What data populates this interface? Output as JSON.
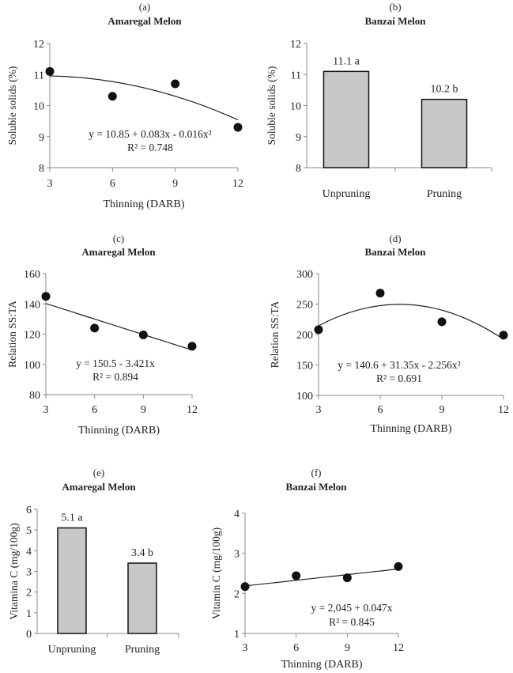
{
  "chart_data": [
    {
      "panel": "(a)",
      "title": "Amaregal Melon",
      "type": "scatter",
      "x": [
        3,
        6,
        9,
        12
      ],
      "y": [
        11.1,
        10.3,
        10.7,
        9.3
      ],
      "xticks": [
        "3",
        "6",
        "9",
        "12"
      ],
      "xlim": [
        3,
        12
      ],
      "ylim": [
        8,
        12
      ],
      "yticks": [
        "8",
        "9",
        "10",
        "11",
        "12"
      ],
      "xlabel": "Thinning  (DARB)",
      "ylabel": "Soluble solids (%)",
      "fit": {
        "kind": "quadratic",
        "coef": [
          10.85,
          0.083,
          -0.016
        ]
      },
      "equation": "y = 10.85 + 0.083x - 0.016x²",
      "r2": "R² = 0.748"
    },
    {
      "panel": "(b)",
      "title": "Banzai Melon",
      "type": "bar",
      "categories": [
        "Unpruning",
        "Pruning"
      ],
      "values": [
        11.1,
        10.2
      ],
      "data_labels": [
        "11.1 a",
        "10.2 b"
      ],
      "ylim": [
        8,
        12
      ],
      "yticks": [
        "8",
        "9",
        "10",
        "11",
        "12"
      ],
      "xlabel": "",
      "ylabel": "Soluble solids (%)",
      "bar_color": "#c8c8c8"
    },
    {
      "panel": "(c)",
      "title": "Amaregal Melon",
      "type": "scatter",
      "x": [
        3,
        6,
        9,
        12
      ],
      "y": [
        145,
        124,
        119.5,
        112
      ],
      "xticks": [
        "3",
        "6",
        "9",
        "12"
      ],
      "xlim": [
        3,
        12
      ],
      "ylim": [
        80,
        160
      ],
      "yticks": [
        "80",
        "100",
        "120",
        "140",
        "160"
      ],
      "xlabel": "Thinning  (DARB)",
      "ylabel": "Relation SS:TA",
      "fit": {
        "kind": "linear",
        "coef": [
          150.5,
          -3.421
        ]
      },
      "equation": "y = 150.5 - 3.421x",
      "r2": "R² = 0.894"
    },
    {
      "panel": "(d)",
      "title": "Banzai Melon",
      "type": "scatter",
      "x": [
        3,
        6,
        9,
        12
      ],
      "y": [
        208,
        268,
        221,
        199
      ],
      "xticks": [
        "3",
        "6",
        "9",
        "12"
      ],
      "xlim": [
        3,
        12
      ],
      "ylim": [
        100,
        300
      ],
      "yticks": [
        "100",
        "150",
        "200",
        "250",
        "300"
      ],
      "xlabel": "Thinning  (DARB)",
      "ylabel": "Relation SS:TA",
      "fit": {
        "kind": "quadratic",
        "coef": [
          140.6,
          31.35,
          -2.256
        ]
      },
      "equation": "y = 140.6 + 31.35x - 2.256x²",
      "r2": "R² = 0.691"
    },
    {
      "panel": "(e)",
      "title": "Amaregal Melon",
      "type": "bar",
      "categories": [
        "Unpruning",
        "Pruning"
      ],
      "values": [
        5.1,
        3.4
      ],
      "data_labels": [
        "5.1 a",
        "3.4 b"
      ],
      "ylim": [
        0,
        6
      ],
      "yticks": [
        "0",
        "1",
        "2",
        "3",
        "4",
        "5",
        "6"
      ],
      "xlabel": "",
      "ylabel": "Vitamina C (mg/100g)",
      "bar_color": "#c8c8c8"
    },
    {
      "panel": "(f)",
      "title": "Banzai Melon",
      "type": "scatter",
      "x": [
        3,
        6,
        9,
        12
      ],
      "y": [
        2.17,
        2.44,
        2.39,
        2.67
      ],
      "xticks": [
        "3",
        "6",
        "9",
        "12"
      ],
      "xlim": [
        3,
        12
      ],
      "ylim": [
        1,
        4
      ],
      "yticks": [
        "1",
        "2",
        "3",
        "4"
      ],
      "xlabel": "Thinning  (DARB)",
      "ylabel": "Vitamin C (mg/100g)",
      "fit": {
        "kind": "linear",
        "coef": [
          2.045,
          0.047
        ]
      },
      "equation": "y = 2,045 + 0.047x",
      "r2": "R² = 0.845"
    }
  ]
}
